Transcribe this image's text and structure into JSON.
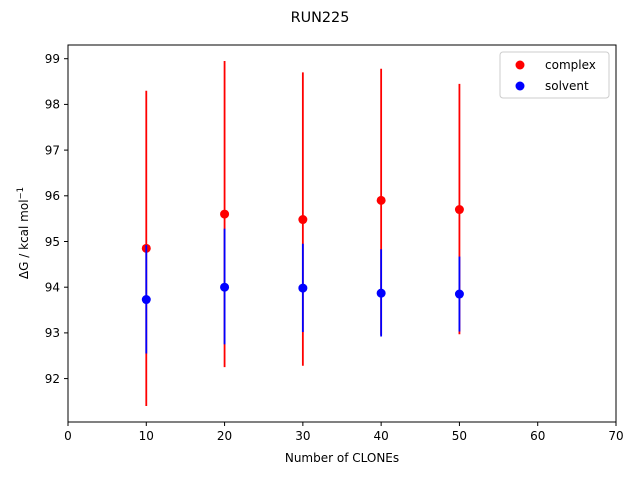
{
  "chart_data": {
    "type": "scatter",
    "title": "RUN225",
    "xlabel": "Number of CLONEs",
    "ylabel": "ΔG / kcal mol",
    "ylabel_superscript": "−1",
    "xlim": [
      0,
      70
    ],
    "ylim": [
      91.05,
      99.3
    ],
    "xticks": [
      0,
      10,
      20,
      30,
      40,
      50,
      60,
      70
    ],
    "yticks": [
      92,
      93,
      94,
      95,
      96,
      97,
      98,
      99
    ],
    "grid": false,
    "legend_position": "top-right",
    "series": [
      {
        "name": "complex",
        "color": "#ff0000",
        "x": [
          10,
          20,
          30,
          40,
          50
        ],
        "y": [
          94.85,
          95.6,
          95.48,
          95.9,
          95.7
        ],
        "yerr_low": [
          91.4,
          92.25,
          92.28,
          92.95,
          92.97
        ],
        "yerr_high": [
          98.3,
          98.95,
          98.7,
          98.78,
          98.45
        ]
      },
      {
        "name": "solvent",
        "color": "#0000ff",
        "x": [
          10,
          20,
          30,
          40,
          50
        ],
        "y": [
          93.73,
          94.0,
          93.98,
          93.87,
          93.85
        ],
        "yerr_low": [
          92.55,
          92.75,
          93.02,
          92.92,
          93.03
        ],
        "yerr_high": [
          94.92,
          95.28,
          94.95,
          94.83,
          94.67
        ]
      }
    ]
  }
}
